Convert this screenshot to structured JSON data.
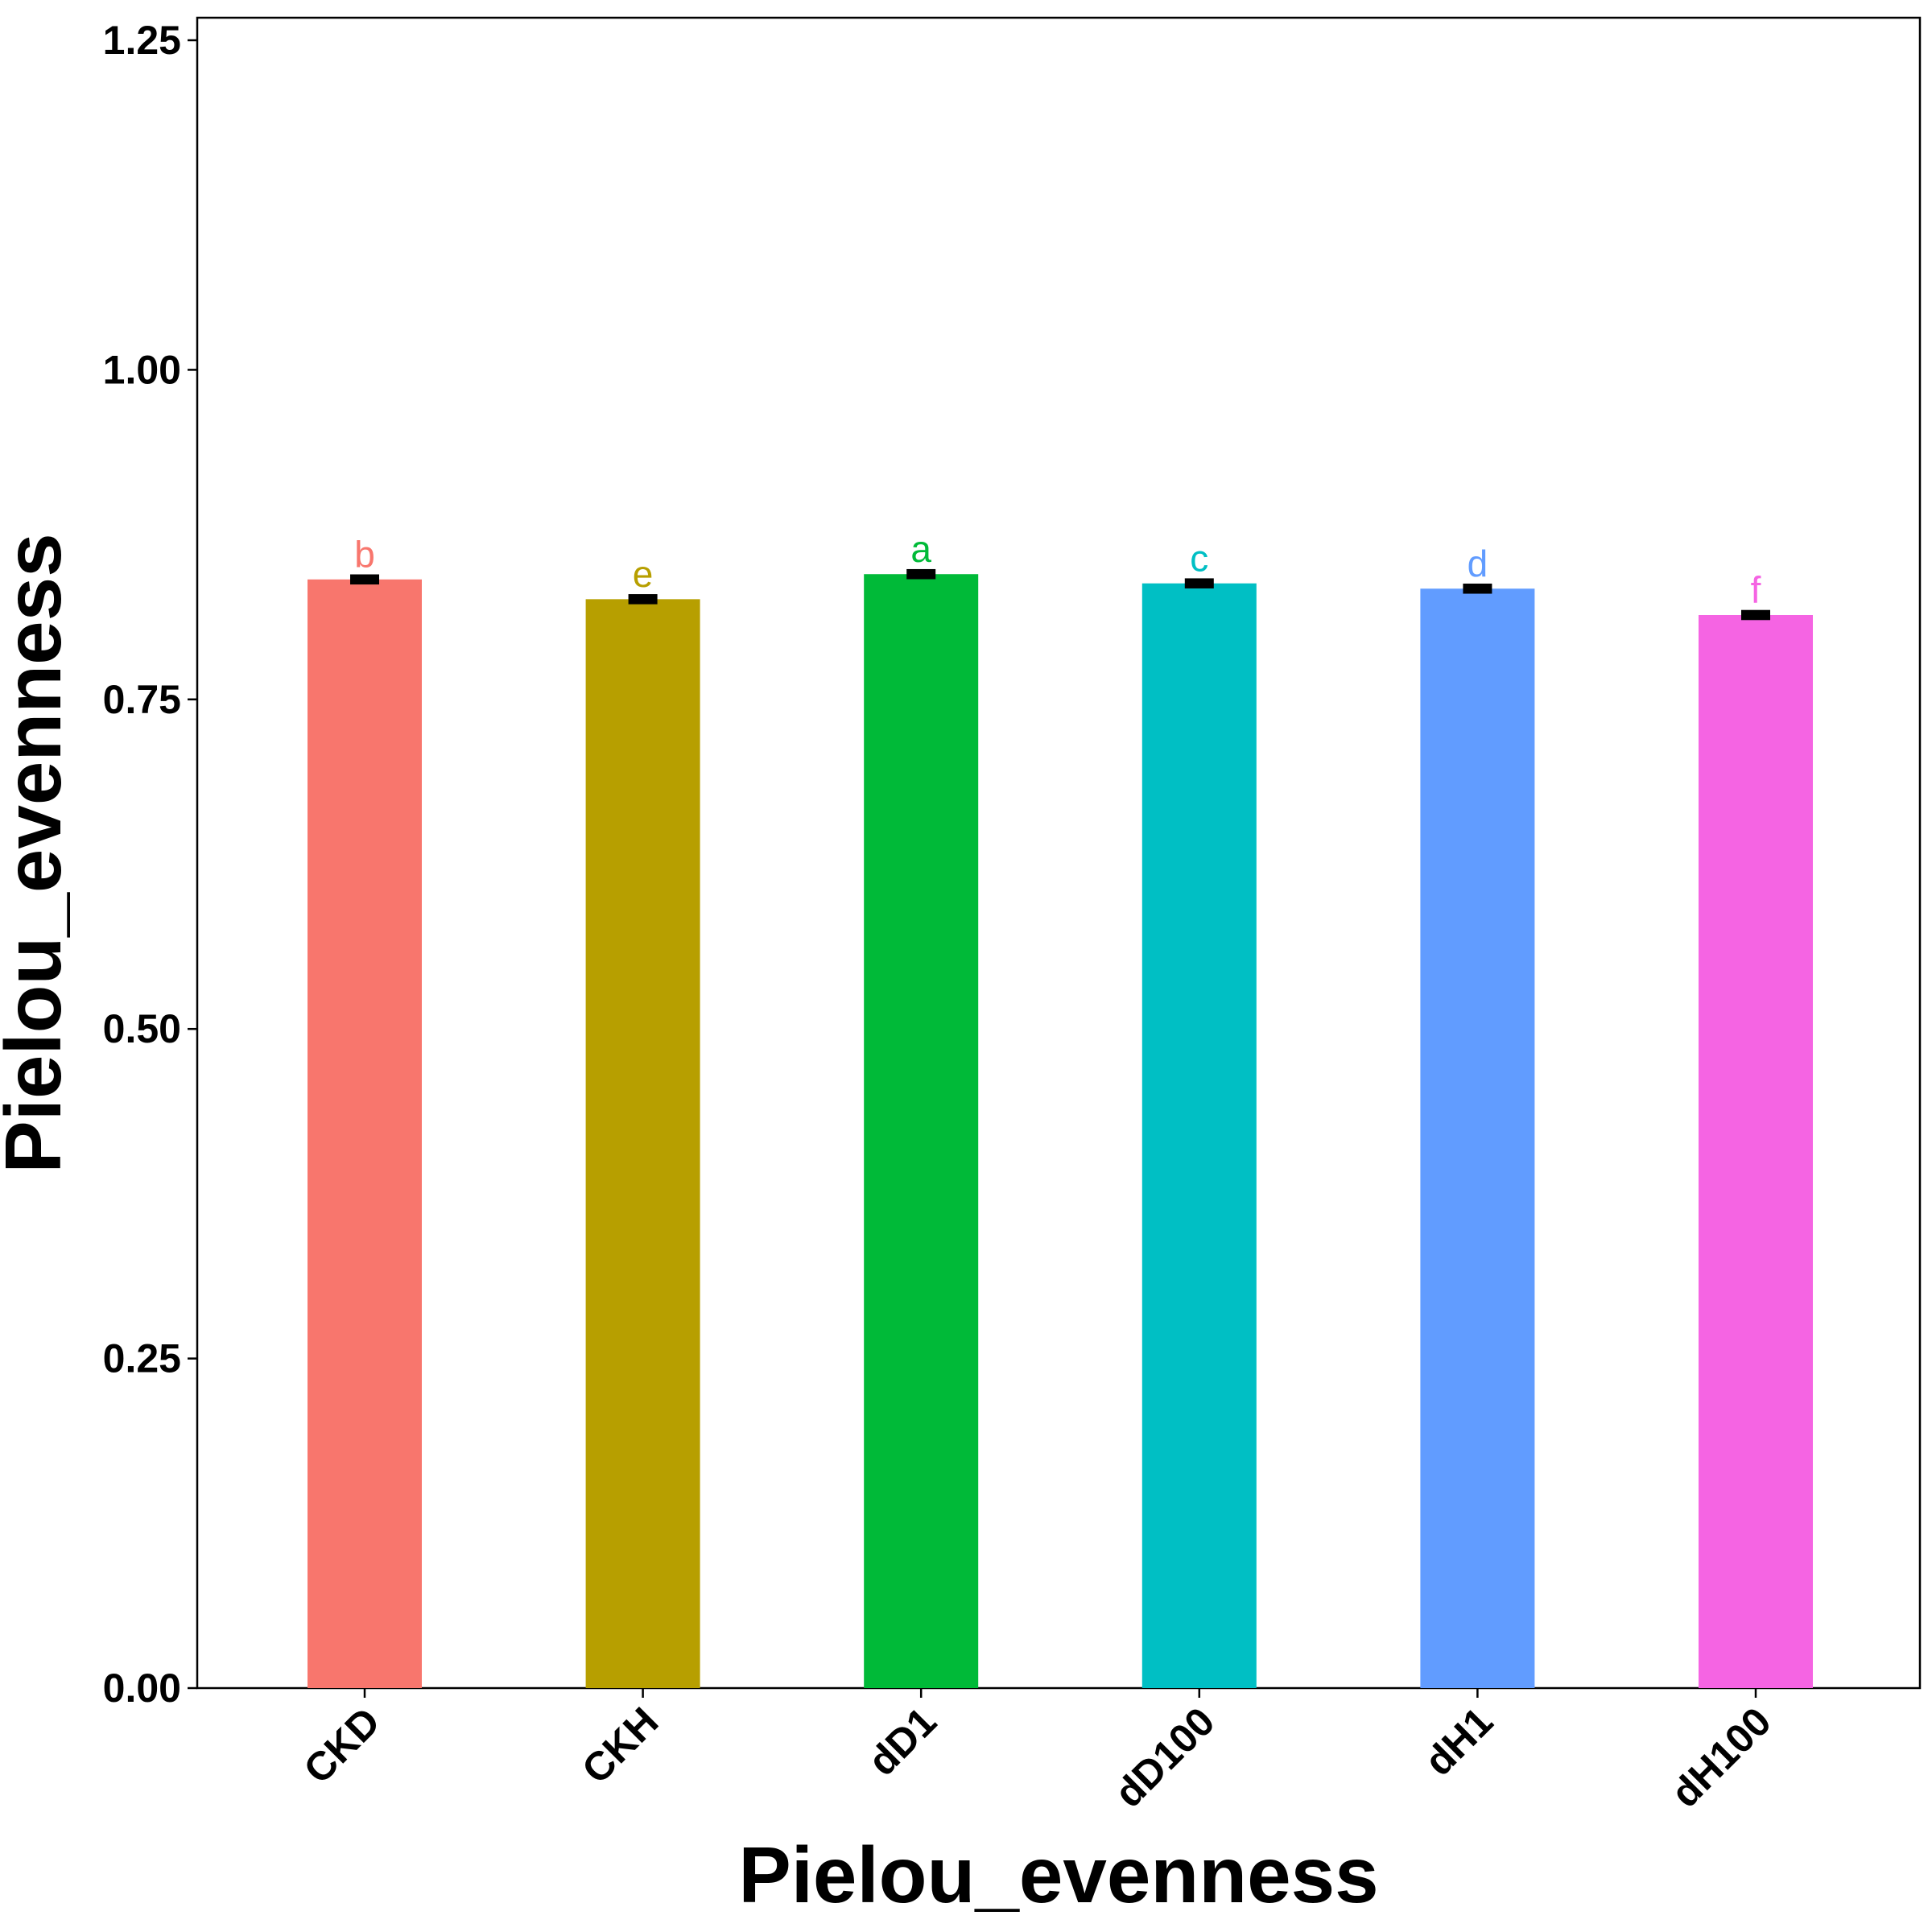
{
  "chart_data": {
    "type": "bar",
    "title": "",
    "xlabel": "Pielou_evenness",
    "ylabel": "Pielou_evenness",
    "ylim": [
      0,
      1.25
    ],
    "yticks": [
      "0.00",
      "0.25",
      "0.50",
      "0.75",
      "1.00",
      "1.25"
    ],
    "ytick_values": [
      0,
      0.25,
      0.5,
      0.75,
      1.0,
      1.25
    ],
    "grid": false,
    "legend": "none",
    "categories": [
      "CKD",
      "CKH",
      "dD1",
      "dD100",
      "dH1",
      "dH100"
    ],
    "values": [
      0.841,
      0.826,
      0.845,
      0.838,
      0.834,
      0.814
    ],
    "errors": [
      0.002,
      0.002,
      0.002,
      0.002,
      0.002,
      0.002
    ],
    "significance_letters": [
      "b",
      "e",
      "a",
      "c",
      "d",
      "f"
    ],
    "colors": [
      "#F8766D",
      "#B79F00",
      "#00BA38",
      "#00BFC4",
      "#619CFF",
      "#F564E3"
    ]
  }
}
